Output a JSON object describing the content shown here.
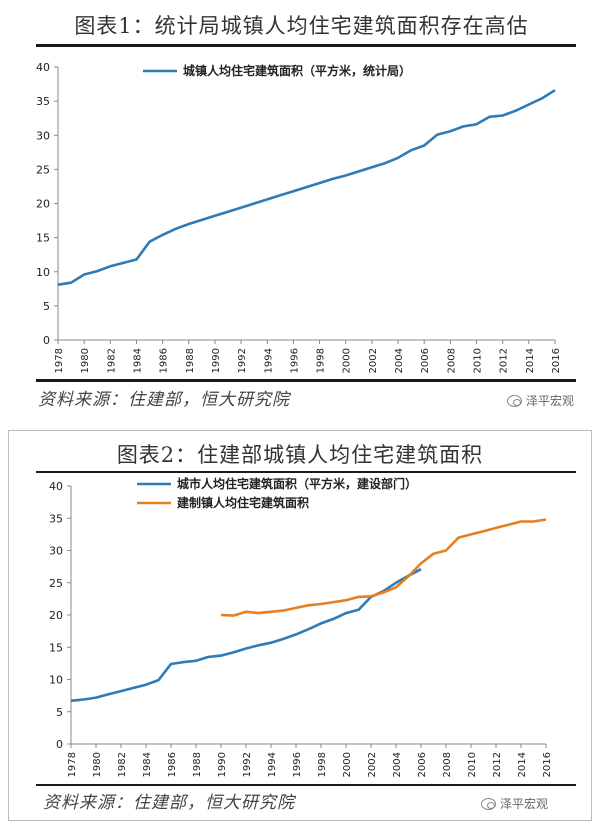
{
  "panel1": {
    "title": "图表1：统计局城镇人均住宅建筑面积存在高估",
    "source": "资料来源：住建部，恒大研究院",
    "brand": "泽平宏观"
  },
  "panel2": {
    "title": "图表2：住建部城镇人均住宅建筑面积",
    "source": "资料来源：住建部，恒大研究院",
    "brand": "泽平宏观"
  },
  "colors": {
    "blue": "#2e7bb6",
    "orange": "#e67e22"
  },
  "chart_data": [
    {
      "type": "line",
      "x": [
        1978,
        1979,
        1980,
        1981,
        1982,
        1983,
        1984,
        1985,
        1986,
        1987,
        1988,
        1989,
        1990,
        1991,
        1992,
        1993,
        1994,
        1995,
        1996,
        1997,
        1998,
        1999,
        2000,
        2001,
        2002,
        2003,
        2004,
        2005,
        2006,
        2007,
        2008,
        2009,
        2010,
        2011,
        2012,
        2013,
        2014,
        2015,
        2016
      ],
      "xticks": [
        "1978",
        "1980",
        "1982",
        "1984",
        "1986",
        "1988",
        "1990",
        "1992",
        "1994",
        "1996",
        "1998",
        "2000",
        "2002",
        "2004",
        "2006",
        "2008",
        "2010",
        "2012",
        "2014",
        "2016"
      ],
      "yticks": [
        "0",
        "5",
        "10",
        "15",
        "20",
        "25",
        "30",
        "35",
        "40"
      ],
      "ylim": [
        0,
        40
      ],
      "series": [
        {
          "name": "城镇人均住宅建筑面积（平方米，统计局）",
          "color": "#2e7bb6",
          "values": [
            8.1,
            8.4,
            9.6,
            10.1,
            10.8,
            11.3,
            11.8,
            14.4,
            15.4,
            16.3,
            17.0,
            17.6,
            18.2,
            18.8,
            19.4,
            20.0,
            20.6,
            21.2,
            21.8,
            22.4,
            23.0,
            23.6,
            24.1,
            24.7,
            25.3,
            25.9,
            26.7,
            27.8,
            28.5,
            30.1,
            30.6,
            31.3,
            31.6,
            32.7,
            32.9,
            33.6,
            34.5,
            35.4,
            36.6
          ]
        }
      ],
      "legend": "top-center"
    },
    {
      "type": "line",
      "x": [
        1978,
        1979,
        1980,
        1981,
        1982,
        1983,
        1984,
        1985,
        1986,
        1987,
        1988,
        1989,
        1990,
        1991,
        1992,
        1993,
        1994,
        1995,
        1996,
        1997,
        1998,
        1999,
        2000,
        2001,
        2002,
        2003,
        2004,
        2005,
        2006,
        2007,
        2008,
        2009,
        2010,
        2011,
        2012,
        2013,
        2014,
        2015,
        2016
      ],
      "xticks": [
        "1978",
        "1980",
        "1982",
        "1984",
        "1986",
        "1988",
        "1990",
        "1992",
        "1994",
        "1996",
        "1998",
        "2000",
        "2002",
        "2004",
        "2006",
        "2008",
        "2010",
        "2012",
        "2014",
        "2016"
      ],
      "yticks": [
        "0",
        "5",
        "10",
        "15",
        "20",
        "25",
        "30",
        "35",
        "40"
      ],
      "ylim": [
        0,
        40
      ],
      "series": [
        {
          "name": "城市人均住宅建筑面积（平方米，建设部门）",
          "color": "#2e7bb6",
          "values": [
            6.7,
            6.9,
            7.2,
            7.7,
            8.2,
            8.7,
            9.2,
            9.9,
            12.4,
            12.7,
            12.9,
            13.5,
            13.7,
            14.2,
            14.8,
            15.3,
            15.7,
            16.3,
            17.0,
            17.8,
            18.7,
            19.4,
            20.3,
            20.8,
            22.8,
            23.7,
            25.0,
            26.1,
            27.1,
            null,
            null,
            null,
            null,
            null,
            null,
            null,
            null,
            null,
            null
          ]
        },
        {
          "name": "建制镇人均住宅建筑面积",
          "color": "#e67e22",
          "values": [
            null,
            null,
            null,
            null,
            null,
            null,
            null,
            null,
            null,
            null,
            null,
            null,
            20.0,
            19.9,
            20.5,
            20.3,
            20.5,
            20.7,
            21.1,
            21.5,
            21.7,
            22.0,
            22.3,
            22.8,
            22.9,
            23.5,
            24.3,
            26.0,
            28.0,
            29.5,
            30.0,
            32.0,
            32.5,
            33.0,
            33.5,
            34.0,
            34.5,
            34.5,
            34.8
          ]
        }
      ],
      "legend": "top-center"
    }
  ]
}
